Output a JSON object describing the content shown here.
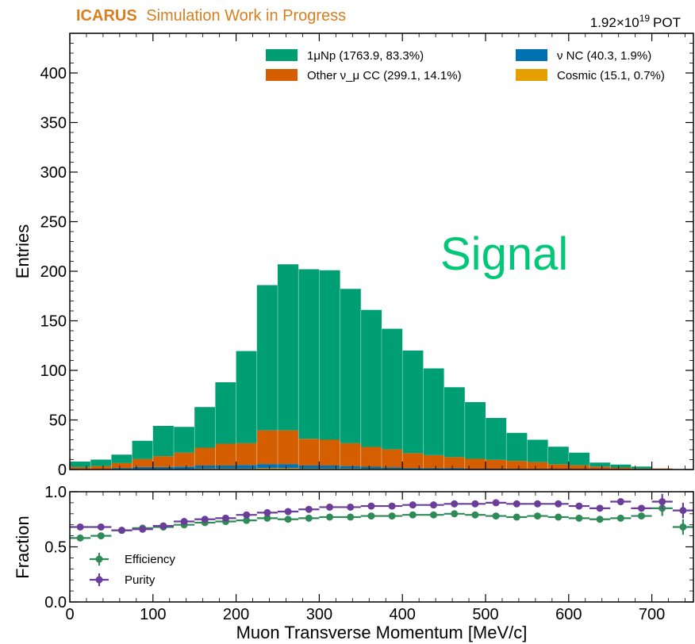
{
  "header": {
    "experiment": "ICARUS",
    "status": "Simulation Work in Progress",
    "pot_mantissa": "1.92×10",
    "pot_exponent": "19",
    "pot_unit": "POT"
  },
  "colors": {
    "brand": "#d97e1f",
    "signal": "#009e73",
    "other_cc": "#d55e00",
    "nc": "#0072b2",
    "cosmic": "#e69f00",
    "efficiency": "#2e8b57",
    "purity": "#6a3d9a",
    "annotation": "#00c878"
  },
  "annotation": "Signal",
  "chart_data": [
    {
      "type": "bar",
      "stacked": true,
      "bin_edges": [
        0,
        25,
        50,
        75,
        100,
        125,
        150,
        175,
        200,
        225,
        250,
        275,
        300,
        325,
        350,
        375,
        400,
        425,
        450,
        475,
        500,
        525,
        550,
        575,
        600,
        625,
        650,
        675,
        700,
        725,
        750
      ],
      "series": [
        {
          "name": "Cosmic (15.1, 0.7%)",
          "values": [
            0,
            0,
            0.5,
            0.5,
            0.5,
            0.5,
            1,
            1,
            1,
            1.5,
            1.5,
            1,
            1,
            1,
            0.8,
            0.8,
            0.5,
            0.5,
            0.5,
            0.3,
            0.3,
            0.2,
            0.2,
            0.1,
            0.1,
            0,
            0,
            0,
            0,
            0
          ]
        },
        {
          "name": "ν NC (40.3, 1.9%)",
          "values": [
            0.5,
            0.5,
            1,
            2,
            2,
            2.5,
            3,
            3,
            3.5,
            4,
            4,
            3,
            3,
            2.5,
            2,
            1.5,
            1,
            1,
            1,
            0.5,
            0.5,
            0.5,
            0.3,
            0.2,
            0.2,
            0,
            0,
            0,
            0,
            0
          ]
        },
        {
          "name": "Other ν_μ CC (299.1, 14.1%)",
          "values": [
            2,
            3,
            5,
            8,
            11,
            14,
            18,
            22,
            22,
            34,
            34,
            27,
            26,
            23,
            20,
            18,
            15,
            13,
            11,
            10,
            9,
            8,
            7,
            5,
            4,
            3,
            2,
            1,
            1,
            0
          ]
        },
        {
          "name": "1μNp (1763.9, 83.3%)",
          "values": [
            5.5,
            6.5,
            8.5,
            18.5,
            30.5,
            26,
            41,
            62,
            93,
            146.5,
            167.5,
            171,
            171,
            155.7,
            138.2,
            121.7,
            103.5,
            87.5,
            70.5,
            57.2,
            42.2,
            28.3,
            22.5,
            17.7,
            12.7,
            4,
            3,
            2,
            0,
            0
          ]
        }
      ],
      "totals": [
        8,
        10,
        15,
        29,
        44,
        43,
        63,
        88,
        120,
        186,
        207,
        202,
        201,
        182,
        161,
        142,
        120,
        102,
        83,
        68,
        52,
        37,
        30,
        23,
        17,
        7,
        5,
        3,
        1,
        0
      ],
      "xlim": [
        0,
        750
      ],
      "ylim": [
        0,
        440
      ],
      "yticks": [
        0,
        50,
        100,
        150,
        200,
        250,
        300,
        350,
        400
      ],
      "xlabel": "",
      "ylabel": "Entries",
      "legend": "top-right, 2 columns"
    },
    {
      "type": "scatter",
      "error_bars": true,
      "x": [
        12.5,
        37.5,
        62.5,
        87.5,
        112.5,
        137.5,
        162.5,
        187.5,
        212.5,
        237.5,
        262.5,
        287.5,
        312.5,
        337.5,
        362.5,
        387.5,
        412.5,
        437.5,
        462.5,
        487.5,
        512.5,
        537.5,
        562.5,
        587.5,
        612.5,
        637.5,
        662.5,
        687.5,
        712.5,
        737.5
      ],
      "series": [
        {
          "name": "Efficiency",
          "values": [
            0.58,
            0.6,
            0.65,
            0.67,
            0.68,
            0.7,
            0.72,
            0.73,
            0.74,
            0.76,
            0.75,
            0.76,
            0.77,
            0.77,
            0.78,
            0.78,
            0.79,
            0.79,
            0.8,
            0.79,
            0.78,
            0.77,
            0.78,
            0.77,
            0.76,
            0.75,
            0.76,
            0.78,
            0.85,
            0.68
          ]
        },
        {
          "name": "Purity",
          "values": [
            0.68,
            0.68,
            0.65,
            0.66,
            0.69,
            0.73,
            0.75,
            0.76,
            0.79,
            0.81,
            0.82,
            0.84,
            0.86,
            0.86,
            0.87,
            0.87,
            0.88,
            0.88,
            0.89,
            0.89,
            0.9,
            0.89,
            0.89,
            0.89,
            0.87,
            0.85,
            0.91,
            0.85,
            0.91,
            0.83
          ]
        }
      ],
      "xlim": [
        0,
        750
      ],
      "ylim": [
        0.0,
        1.0
      ],
      "xticks": [
        0,
        100,
        200,
        300,
        400,
        500,
        600,
        700
      ],
      "yticks": [
        "0.0",
        "0.5",
        "1.0"
      ],
      "xlabel": "Muon Transverse Momentum [MeV/c]",
      "ylabel": "Fraction",
      "legend": "bottom-left"
    }
  ]
}
